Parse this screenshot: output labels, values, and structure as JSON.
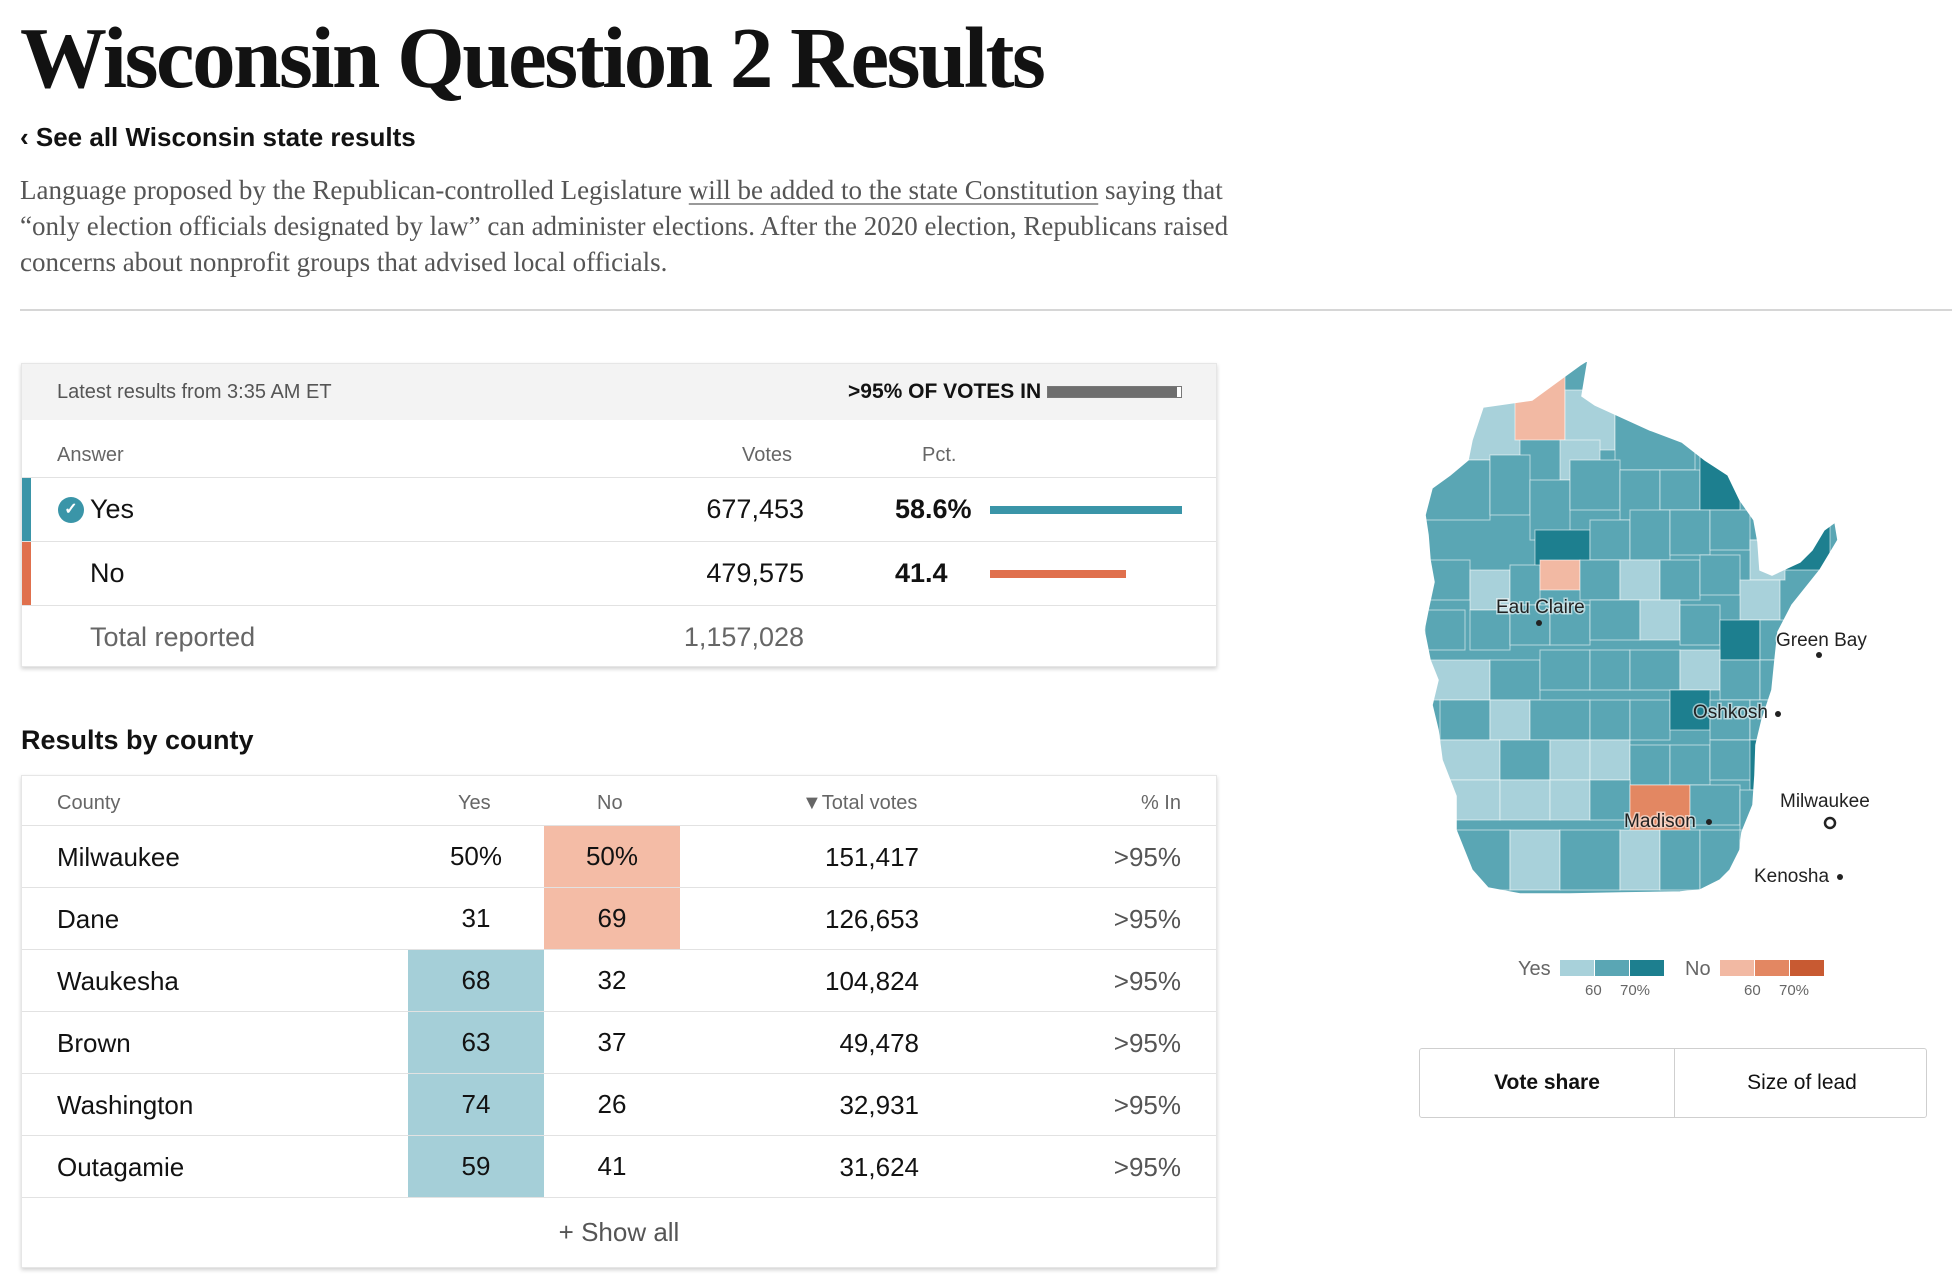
{
  "page": {
    "title": "Wisconsin Question 2 Results",
    "back_link": "‹ See all Wisconsin state results",
    "summary_before": "Language proposed by the Republican-controlled Legislature ",
    "summary_link": "will be added to the state Constitution",
    "summary_after": " saying that “only election officials designated by law” can administer elections. After the 2020 election, Republicans raised concerns about nonprofit groups that advised local officials."
  },
  "results": {
    "latest": "Latest results from 3:35 AM ET",
    "votes_in_label": ">95% OF VOTES IN",
    "votes_in_fraction": 0.97,
    "headers": {
      "answer": "Answer",
      "votes": "Votes",
      "pct": "Pct."
    },
    "rows": [
      {
        "answer": "Yes",
        "votes": "677,453",
        "pct": "58.6%",
        "share": 0.586,
        "winner": true,
        "color": "#3a95a8"
      },
      {
        "answer": "No",
        "votes": "479,575",
        "pct": "41.4",
        "share": 0.414,
        "winner": false,
        "color": "#e0704d"
      }
    ],
    "total_label": "Total reported",
    "total_votes": "1,157,028",
    "winner_icon": "check-circle-icon"
  },
  "county": {
    "heading": "Results by county",
    "headers": {
      "county": "County",
      "yes": "Yes",
      "no": "No",
      "total": "▼Total votes",
      "in": "% In"
    },
    "rows": [
      {
        "name": "Milwaukee",
        "yes": "50%",
        "no": "50%",
        "total": "151,417",
        "in": ">95%",
        "lead": "no"
      },
      {
        "name": "Dane",
        "yes": "31",
        "no": "69",
        "total": "126,653",
        "in": ">95%",
        "lead": "no"
      },
      {
        "name": "Waukesha",
        "yes": "68",
        "no": "32",
        "total": "104,824",
        "in": ">95%",
        "lead": "yes"
      },
      {
        "name": "Brown",
        "yes": "63",
        "no": "37",
        "total": "49,478",
        "in": ">95%",
        "lead": "yes"
      },
      {
        "name": "Washington",
        "yes": "74",
        "no": "26",
        "total": "32,931",
        "in": ">95%",
        "lead": "yes"
      },
      {
        "name": "Outagamie",
        "yes": "59",
        "no": "41",
        "total": "31,624",
        "in": ">95%",
        "lead": "yes"
      }
    ],
    "show_all": "+ Show all"
  },
  "map": {
    "cities": {
      "eau_claire": "Eau Claire",
      "green_bay": "Green Bay",
      "oshkosh": "Oshkosh",
      "madison": "Madison",
      "milwaukee": "Milwaukee",
      "kenosha": "Kenosha"
    },
    "colors": {
      "yes_light": "#a8d1da",
      "yes_mid": "#5aa6b4",
      "yes_dark": "#1d7f8f",
      "no_light": "#f2b9a3",
      "no_mid": "#e38762",
      "no_dark": "#c85a32",
      "yes_lead_cell": "#a5cfd8",
      "no_lead_cell": "#f4bca6"
    }
  },
  "legend": {
    "yes_label": "Yes",
    "no_label": "No",
    "tick_60": "60",
    "tick_70": "70%"
  },
  "toggle": {
    "vote_share": "Vote share",
    "size_of_lead": "Size of lead",
    "active": "vote_share"
  }
}
